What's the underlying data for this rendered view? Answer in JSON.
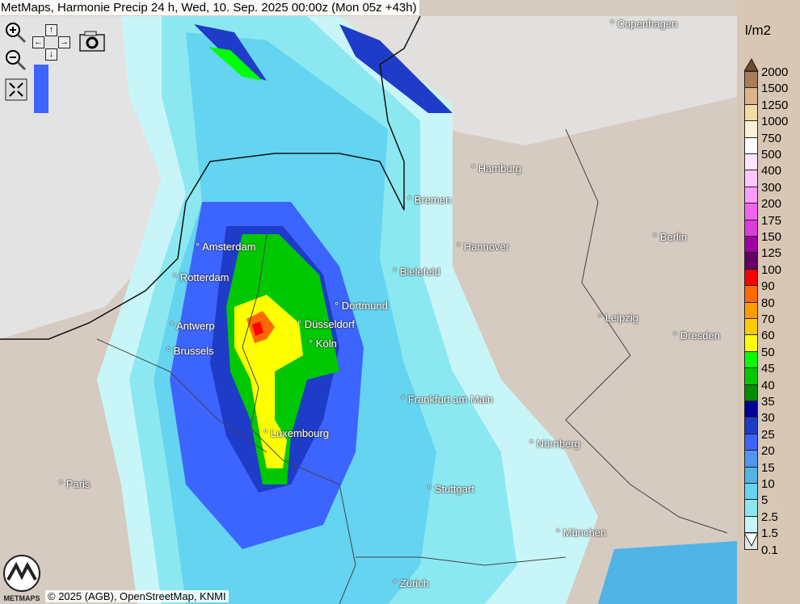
{
  "title": "MetMaps, Harmonie Precip 24 h, Wed, 10. Sep. 2025 00:00z (Mon 05z +43h)",
  "controls": [
    {
      "name": "zoom-in-icon"
    },
    {
      "name": "zoom-out-icon"
    },
    {
      "name": "pan-arrows-icon"
    },
    {
      "name": "camera-icon"
    },
    {
      "name": "fullscreen-icon"
    }
  ],
  "pan_arrows": {
    "up": "↑",
    "down": "↓",
    "left": "←",
    "right": "→"
  },
  "cities": [
    "Copenhagen",
    "Hamburg",
    "Bremen",
    "Amsterdam",
    "Hannover",
    "Berlin",
    "Rotterdam",
    "Bielefeld",
    "Dortmund",
    "Leipzig",
    "Antwerp",
    "Düsseldorf",
    "Dresden",
    "Brussels",
    "Köln",
    "Frankfurt am Main",
    "Luxembourg",
    "Nürnberg",
    "Paris",
    "Stuttgart",
    "München",
    "Zürich"
  ],
  "copyright": "© 2025 (AGB), OpenStreetMap, KNMI",
  "logo_text": "METMAPS",
  "legend": {
    "unit": "l/m2",
    "labels": [
      "2000",
      "1500",
      "1250",
      "1000",
      "750",
      "500",
      "400",
      "300",
      "200",
      "175",
      "150",
      "125",
      "100",
      "90",
      "80",
      "70",
      "60",
      "50",
      "45",
      "40",
      "35",
      "30",
      "25",
      "20",
      "15",
      "10",
      "5",
      "2.5",
      "1.5",
      "0.1"
    ],
    "colors": [
      "#a87d58",
      "#dcb48c",
      "#f0dca6",
      "#fbf1d6",
      "#ffffff",
      "#ffe6ff",
      "#ffc8ff",
      "#ff9cff",
      "#f064f0",
      "#dc3cdc",
      "#a000a0",
      "#640064",
      "#ff0000",
      "#ff6a00",
      "#ff9c00",
      "#ffcc00",
      "#ffff00",
      "#00ff00",
      "#00c800",
      "#008c00",
      "#000096",
      "#1e3cc8",
      "#3c64ff",
      "#5096ee",
      "#50b4e6",
      "#64d4f0",
      "#8ce8f0",
      "#c8f6f8",
      "#e4e4e4"
    ],
    "top_arrow_color": "#6e4a2a",
    "bottom_arrow_color": "#ffffff"
  }
}
